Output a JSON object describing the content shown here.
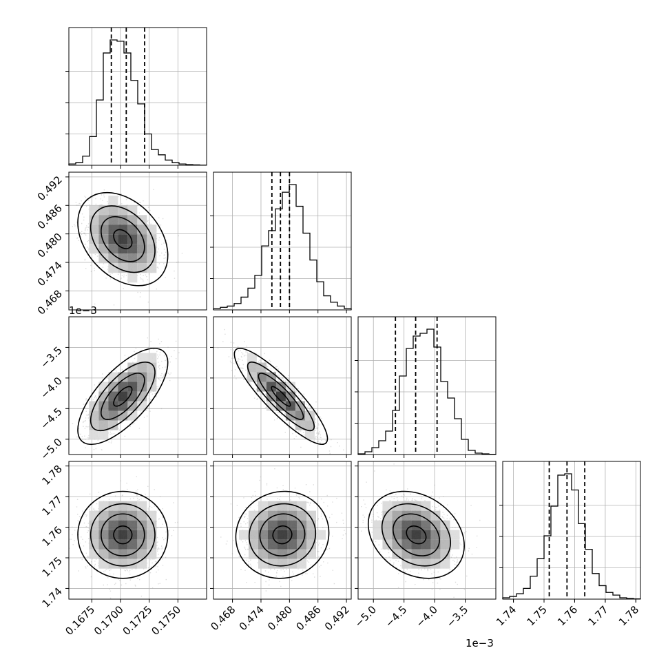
{
  "chart_data": {
    "type": "corner",
    "grid": true,
    "parameters": [
      {
        "range": [
          0.1655,
          0.1775
        ],
        "ticks": [
          0.1675,
          0.17,
          0.1725,
          0.175
        ],
        "tick_labels": [
          "0.1675",
          "0.1700",
          "0.1725",
          "0.1750"
        ],
        "quantiles": [
          0.1692,
          0.1705,
          0.1721
        ],
        "offset_label": ""
      },
      {
        "range": [
          0.464,
          0.493
        ],
        "ticks": [
          0.468,
          0.474,
          0.48,
          0.486,
          0.492
        ],
        "tick_labels": [
          "0.468",
          "0.474",
          "0.480",
          "0.486",
          "0.492"
        ],
        "quantiles": [
          0.4763,
          0.4781,
          0.48
        ],
        "offset_label": "1e−3"
      },
      {
        "range": [
          -5.25,
          -3.0
        ],
        "ticks": [
          -5.0,
          -4.5,
          -4.0,
          -3.5
        ],
        "tick_labels": [
          "−5.0",
          "−4.5",
          "−4.0",
          "−3.5"
        ],
        "quantiles": [
          -4.64,
          -4.31,
          -3.96
        ],
        "offset_label": "1e−3"
      },
      {
        "range": [
          1.7365,
          1.7815
        ],
        "ticks": [
          1.74,
          1.75,
          1.76,
          1.77,
          1.78
        ],
        "tick_labels": [
          "1.74",
          "1.75",
          "1.76",
          "1.77",
          "1.78"
        ],
        "quantiles": [
          1.7517,
          1.7575,
          1.7633
        ],
        "offset_label": ""
      }
    ],
    "histograms": [
      {
        "counts": [
          1,
          2,
          7,
          22,
          50,
          86,
          96,
          95,
          86,
          65,
          47,
          24,
          12,
          8,
          4,
          2,
          1,
          0.5,
          0.3,
          0.1
        ]
      },
      {
        "counts": [
          1,
          2,
          3,
          5,
          10,
          17,
          27,
          50,
          62,
          79,
          92,
          98,
          81,
          60,
          39,
          22,
          11,
          6,
          3,
          1
        ]
      },
      {
        "counts": [
          0.5,
          2,
          5,
          10,
          17,
          32,
          57,
          77,
          86,
          88,
          91,
          78,
          53,
          41,
          26,
          11,
          3,
          1,
          0.5,
          0.2
        ]
      },
      {
        "counts": [
          1,
          2,
          4,
          8,
          17,
          30,
          47,
          69,
          92,
          93,
          81,
          56,
          37,
          19,
          10,
          5,
          3,
          1,
          0.5,
          0.2
        ]
      }
    ],
    "pairs": [
      {
        "x_param": 0,
        "y_param": 1,
        "center": [
          0.1702,
          0.4789
        ],
        "sigma": [
          0.0016,
          0.004
        ],
        "rho": -0.35
      },
      {
        "x_param": 0,
        "y_param": 2,
        "center": [
          0.1702,
          -4.3
        ],
        "sigma": [
          0.0016,
          0.32
        ],
        "rho": 0.7
      },
      {
        "x_param": 1,
        "y_param": 2,
        "center": [
          0.4782,
          -4.3
        ],
        "sigma": [
          0.004,
          0.32
        ],
        "rho": -0.88
      },
      {
        "x_param": 0,
        "y_param": 3,
        "center": [
          0.1702,
          1.7575
        ],
        "sigma": [
          0.0016,
          0.0058
        ],
        "rho": 0.0
      },
      {
        "x_param": 1,
        "y_param": 3,
        "center": [
          0.4785,
          1.7575
        ],
        "sigma": [
          0.004,
          0.0058
        ],
        "rho": 0.05
      },
      {
        "x_param": 2,
        "y_param": 3,
        "center": [
          -4.3,
          1.7575
        ],
        "sigma": [
          0.32,
          0.0058
        ],
        "rho": -0.25
      }
    ]
  }
}
